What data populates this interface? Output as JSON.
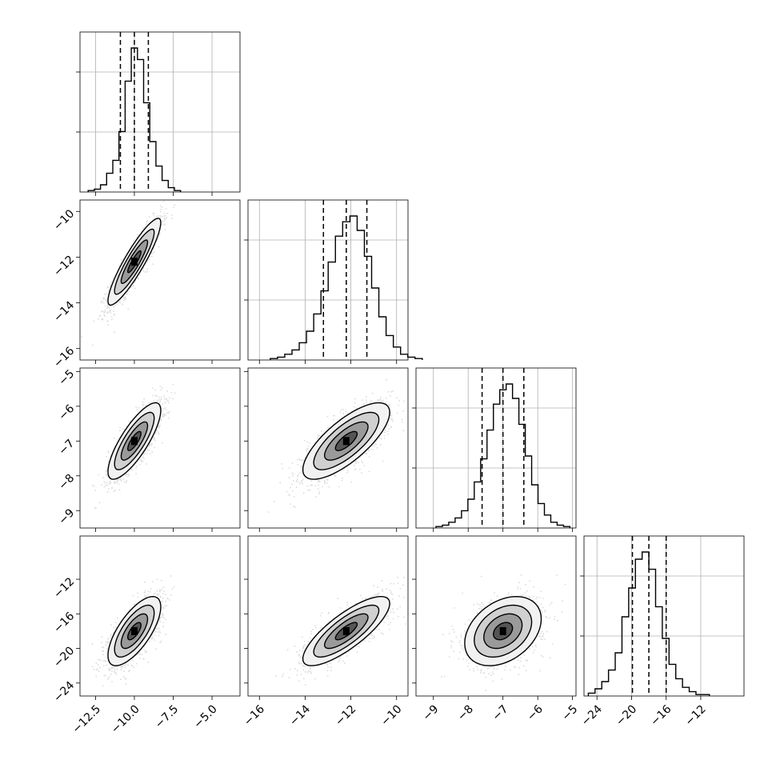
{
  "chart_data": {
    "type": "corner",
    "parameters": 4,
    "grid": true,
    "quantiles": [
      0.16,
      0.5,
      0.84
    ],
    "axes": [
      {
        "range": [
          -13.5,
          -3.2
        ],
        "ticks": [
          -12.5,
          -10.0,
          -7.5,
          -5.0
        ],
        "tick_labels": [
          "−12.5",
          "−10.0",
          "−7.5",
          "−5.0"
        ],
        "mean": -10.0,
        "sd": 0.85
      },
      {
        "range": [
          -16.5,
          -9.5
        ],
        "ticks": [
          -16,
          -14,
          -12,
          -10
        ],
        "tick_labels": [
          "−16",
          "−14",
          "−12",
          "−10"
        ],
        "mean": -12.2,
        "sd": 0.95
      },
      {
        "range": [
          -9.5,
          -4.9
        ],
        "ticks": [
          -9,
          -8,
          -7,
          -6,
          -5
        ],
        "tick_labels": [
          "−9",
          "−8",
          "−7",
          "−6",
          "−5"
        ],
        "mean": -7.0,
        "sd": 0.55
      },
      {
        "range": [
          -25.5,
          -7.0
        ],
        "ticks": [
          -24,
          -20,
          -16,
          -12
        ],
        "tick_labels": [
          "−24",
          "−20",
          "−16",
          "−12"
        ],
        "mean": -18.0,
        "sd": 2.0
      }
    ],
    "quantile_lines": [
      [
        -10.9,
        -10.0,
        -9.1
      ],
      [
        -13.2,
        -12.2,
        -11.3
      ],
      [
        -7.6,
        -7.0,
        -6.4
      ],
      [
        -19.9,
        -18.0,
        -16.0
      ]
    ],
    "correlations": [
      [
        1,
        0.9,
        0.8,
        0.7
      ],
      [
        0.9,
        1,
        0.75,
        0.8
      ],
      [
        0.8,
        0.75,
        1,
        0.35
      ],
      [
        0.7,
        0.8,
        0.35,
        1
      ]
    ],
    "histograms": [
      [
        0.01,
        0.02,
        0.05,
        0.13,
        0.22,
        0.42,
        0.77,
        1.0,
        0.92,
        0.62,
        0.35,
        0.18,
        0.08,
        0.03,
        0.01
      ],
      [
        0.01,
        0.02,
        0.04,
        0.07,
        0.12,
        0.2,
        0.32,
        0.48,
        0.68,
        0.86,
        0.96,
        1.0,
        0.9,
        0.72,
        0.5,
        0.3,
        0.17,
        0.09,
        0.04,
        0.02,
        0.01
      ],
      [
        0.01,
        0.02,
        0.04,
        0.07,
        0.12,
        0.2,
        0.32,
        0.48,
        0.68,
        0.86,
        0.96,
        1.0,
        0.9,
        0.72,
        0.5,
        0.3,
        0.17,
        0.09,
        0.04,
        0.02,
        0.01
      ],
      [
        0.02,
        0.05,
        0.1,
        0.18,
        0.3,
        0.55,
        0.75,
        0.95,
        1.0,
        0.88,
        0.62,
        0.4,
        0.22,
        0.12,
        0.06,
        0.03,
        0.01,
        0.01
      ]
    ],
    "hist_ticks": [
      0.25,
      0.625
    ]
  }
}
